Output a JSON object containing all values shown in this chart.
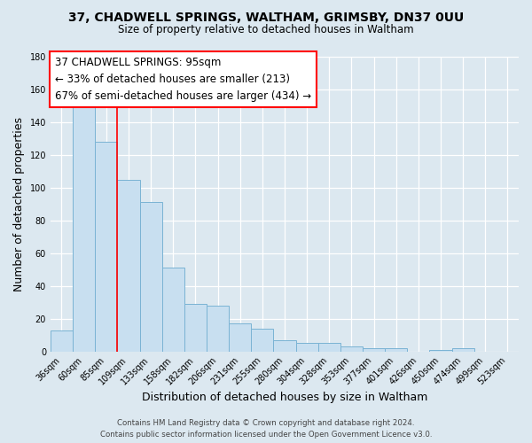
{
  "title": "37, CHADWELL SPRINGS, WALTHAM, GRIMSBY, DN37 0UU",
  "subtitle": "Size of property relative to detached houses in Waltham",
  "xlabel": "Distribution of detached houses by size in Waltham",
  "ylabel": "Number of detached properties",
  "bar_values_all": [
    13,
    150,
    128,
    105,
    91,
    51,
    29,
    28,
    17,
    14,
    7,
    5,
    5,
    3,
    2,
    2,
    0,
    1,
    2,
    0,
    0
  ],
  "x_tick_labels": [
    "36sqm",
    "60sqm",
    "85sqm",
    "109sqm",
    "133sqm",
    "158sqm",
    "182sqm",
    "206sqm",
    "231sqm",
    "255sqm",
    "280sqm",
    "304sqm",
    "328sqm",
    "353sqm",
    "377sqm",
    "401sqm",
    "426sqm",
    "450sqm",
    "474sqm",
    "499sqm",
    "523sqm"
  ],
  "bar_color": "#c8dff0",
  "bar_edge_color": "#7ab3d4",
  "bg_color": "#dce8f0",
  "plot_bg_color": "#dce8f0",
  "red_line_x": 2.5,
  "ylim": [
    0,
    180
  ],
  "yticks": [
    0,
    20,
    40,
    60,
    80,
    100,
    120,
    140,
    160,
    180
  ],
  "annotation_title": "37 CHADWELL SPRINGS: 95sqm",
  "annotation_line1": "← 33% of detached houses are smaller (213)",
  "annotation_line2": "67% of semi-detached houses are larger (434) →",
  "footer_line1": "Contains HM Land Registry data © Crown copyright and database right 2024.",
  "footer_line2": "Contains public sector information licensed under the Open Government Licence v3.0."
}
